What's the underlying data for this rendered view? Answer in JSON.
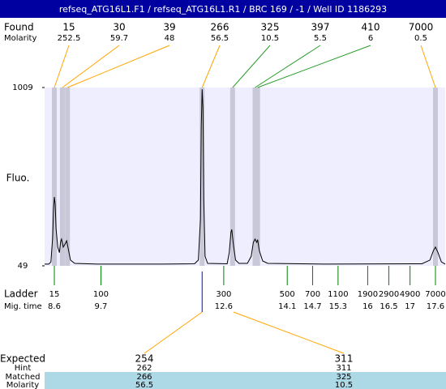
{
  "header": {
    "title": "refseq_ATG16L1.F1 / refseq_ATG16L1.R1 / BRC 169 / -1 / Well ID 1186293"
  },
  "found": {
    "label": "Found",
    "molarity_label": "Molarity",
    "peaks": [
      {
        "size": 15,
        "molarity": 252.5,
        "time": 8.6
      },
      {
        "size": 30,
        "molarity": 59.7,
        "time": 8.79
      },
      {
        "size": 39,
        "molarity": 48,
        "time": 8.91
      },
      {
        "size": 266,
        "molarity": 56.5,
        "time": 12.09
      },
      {
        "size": 325,
        "molarity": 10.5,
        "time": 12.81
      },
      {
        "size": 397,
        "molarity": 5.5,
        "time": 13.34
      },
      {
        "size": 410,
        "molarity": 6,
        "time": 13.4
      },
      {
        "size": 7000,
        "molarity": 0.5,
        "time": 17.6
      }
    ]
  },
  "chart_data": {
    "type": "line",
    "ylabel": "Fluo.",
    "ylim": [
      49,
      1009
    ],
    "yticks": [
      49,
      1009
    ],
    "xlim": [
      8.37,
      17.83
    ],
    "color": "#000000",
    "x": [
      8.37,
      8.47,
      8.52,
      8.56,
      8.58,
      8.6,
      8.62,
      8.64,
      8.68,
      8.72,
      8.75,
      8.77,
      8.81,
      8.85,
      8.89,
      8.93,
      8.98,
      9.08,
      9.62,
      11.15,
      11.91,
      12.0,
      12.05,
      12.07,
      12.09,
      12.11,
      12.13,
      12.16,
      12.22,
      12.68,
      12.73,
      12.77,
      12.79,
      12.83,
      12.88,
      12.96,
      13.16,
      13.25,
      13.3,
      13.34,
      13.38,
      13.4,
      13.44,
      13.52,
      13.64,
      14.98,
      17.28,
      17.47,
      17.55,
      17.6,
      17.66,
      17.74,
      17.83
    ],
    "values": [
      58,
      58,
      70,
      200,
      350,
      420,
      380,
      250,
      150,
      120,
      180,
      193,
      150,
      165,
      184,
      140,
      80,
      62,
      58,
      58,
      60,
      80,
      300,
      800,
      1000,
      900,
      400,
      100,
      62,
      60,
      120,
      230,
      245,
      160,
      80,
      62,
      62,
      100,
      175,
      193,
      175,
      190,
      130,
      75,
      62,
      58,
      60,
      80,
      130,
      150,
      120,
      70,
      58
    ]
  },
  "ladder": {
    "label": "Ladder",
    "time_label": "Mig. time",
    "sizes": [
      15,
      100,
      300,
      500,
      700,
      1100,
      1900,
      2900,
      4900,
      7000
    ],
    "times": [
      8.6,
      9.7,
      12.6,
      14.1,
      14.7,
      15.3,
      16,
      16.5,
      17,
      17.6
    ]
  },
  "expected": {
    "label": "Expected",
    "hint_label": "Hint",
    "matched_label": "Matched",
    "molarity_label": "Molarity",
    "values": [
      254,
      311
    ],
    "hint": [
      262,
      311
    ],
    "matched": [
      266,
      325
    ],
    "molarity": [
      56.5,
      10.5
    ]
  }
}
